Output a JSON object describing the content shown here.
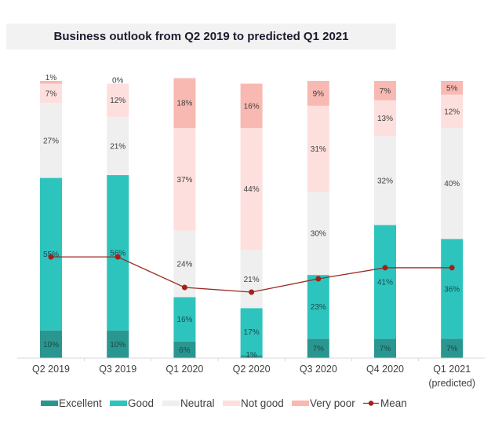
{
  "chart_data": {
    "type": "bar",
    "stacked": true,
    "title": "Business outlook from Q2 2019 to predicted Q1 2021",
    "xlabel": "",
    "ylabel": "",
    "ylim": [
      0,
      100
    ],
    "grid": false,
    "legend_position": "bottom",
    "categories": [
      "Q2 2019",
      "Q3 2019",
      "Q1 2020",
      "Q2 2020",
      "Q3 2020",
      "Q4 2020",
      "Q1 2021"
    ],
    "category_sublabels": [
      "",
      "",
      "",
      "",
      "",
      "",
      "(predicted)"
    ],
    "series": [
      {
        "name": "Excellent",
        "color": "#2a9690",
        "values": [
          10,
          10,
          6,
          1,
          7,
          7,
          7
        ]
      },
      {
        "name": "Good",
        "color": "#2ec4be",
        "values": [
          55,
          56,
          16,
          17,
          23,
          41,
          36
        ]
      },
      {
        "name": "Neutral",
        "color": "#efefef",
        "values": [
          27,
          21,
          24,
          21,
          30,
          32,
          40
        ]
      },
      {
        "name": "Not good",
        "color": "#fde0de",
        "values": [
          7,
          12,
          37,
          44,
          31,
          13,
          12
        ]
      },
      {
        "name": "Very poor",
        "color": "#f9b9b3",
        "values": [
          1,
          0,
          18,
          16,
          9,
          7,
          5
        ]
      }
    ],
    "line_series": {
      "name": "Mean",
      "color": "#9c2a24",
      "marker_color": "#a61f17",
      "values_approx_percent_scale": [
        36.5,
        36.5,
        25.5,
        23.8,
        28.6,
        32.6,
        32.6
      ]
    }
  }
}
